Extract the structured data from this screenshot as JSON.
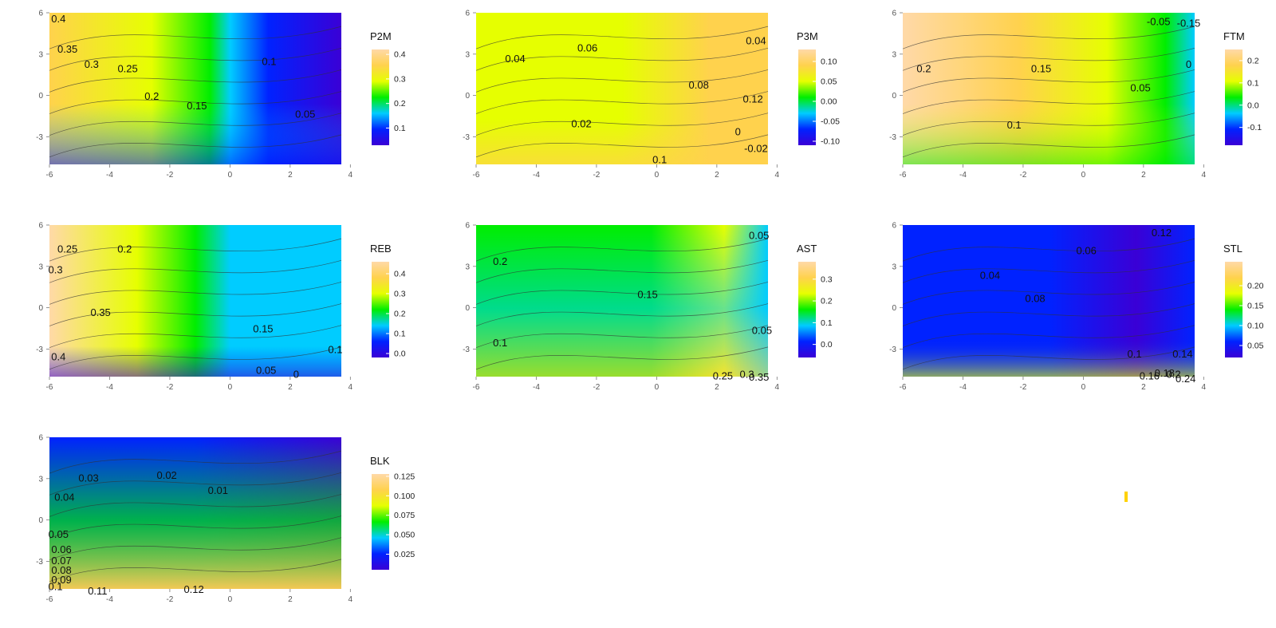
{
  "colors": {
    "palette": [
      "#3a00d6",
      "#0022ff",
      "#00ccff",
      "#00ee00",
      "#e6ff00",
      "#ffd24d",
      "#ffd9a8"
    ],
    "contour_line": "#333333",
    "marker": "#ffd200"
  },
  "chart_data": [
    {
      "type": "heatmap",
      "legend_title": "P2M",
      "legend_ticks": [
        "0.4",
        "0.3",
        "0.2",
        "0.1"
      ],
      "value_range": [
        0.03,
        0.42
      ],
      "xlim": [
        -6,
        3.7
      ],
      "ylim": [
        -5,
        6
      ],
      "x_ticks": [
        "-6",
        "-4",
        "-2",
        "0",
        "2",
        "4"
      ],
      "y_ticks": [
        "6",
        "3",
        "0",
        "-3"
      ],
      "contour_labels": [
        {
          "text": "0.4",
          "x": -5.7,
          "y": 5.5
        },
        {
          "text": "0.35",
          "x": -5.4,
          "y": 3.3
        },
        {
          "text": "0.3",
          "x": -4.6,
          "y": 2.2
        },
        {
          "text": "0.25",
          "x": -3.4,
          "y": 1.9
        },
        {
          "text": "0.2",
          "x": -2.6,
          "y": -0.1
        },
        {
          "text": "0.15",
          "x": -1.1,
          "y": -0.8
        },
        {
          "text": "0.1",
          "x": 1.3,
          "y": 2.4
        },
        {
          "text": "0.05",
          "x": 2.5,
          "y": -1.4
        }
      ]
    },
    {
      "type": "heatmap",
      "legend_title": "P3M",
      "legend_ticks": [
        "0.10",
        "0.05",
        "0.00",
        "-0.05",
        "-0.10"
      ],
      "value_range": [
        -0.11,
        0.13
      ],
      "xlim": [
        -6,
        3.7
      ],
      "ylim": [
        -5,
        6
      ],
      "x_ticks": [
        "-6",
        "-4",
        "-2",
        "0",
        "2",
        "4"
      ],
      "y_ticks": [
        "6",
        "3",
        "0",
        "-3"
      ],
      "contour_labels": [
        {
          "text": "0.04",
          "x": -4.7,
          "y": 2.6
        },
        {
          "text": "0.06",
          "x": -2.3,
          "y": 3.4
        },
        {
          "text": "0.08",
          "x": 1.4,
          "y": 0.7
        },
        {
          "text": "0.12",
          "x": 3.2,
          "y": -0.3
        },
        {
          "text": "0.02",
          "x": -2.5,
          "y": -2.1
        },
        {
          "text": "0.1",
          "x": 0.1,
          "y": -4.7
        },
        {
          "text": "0",
          "x": 2.7,
          "y": -2.7
        },
        {
          "text": "-0.02",
          "x": 3.3,
          "y": -3.9
        },
        {
          "text": "0.04",
          "x": 3.3,
          "y": 3.9
        }
      ]
    },
    {
      "type": "heatmap",
      "legend_title": "FTM",
      "legend_ticks": [
        "0.2",
        "0.1",
        "0.0",
        "-0.1"
      ],
      "value_range": [
        -0.18,
        0.25
      ],
      "xlim": [
        -6,
        3.7
      ],
      "ylim": [
        -5,
        6
      ],
      "x_ticks": [
        "-6",
        "-4",
        "-2",
        "0",
        "2",
        "4"
      ],
      "y_ticks": [
        "6",
        "3",
        "0",
        "-3"
      ],
      "contour_labels": [
        {
          "text": "0.2",
          "x": -5.3,
          "y": 1.9
        },
        {
          "text": "0.15",
          "x": -1.4,
          "y": 1.9
        },
        {
          "text": "0.05",
          "x": 1.9,
          "y": 0.5
        },
        {
          "text": "0.1",
          "x": -2.3,
          "y": -2.2
        },
        {
          "text": "0",
          "x": 3.5,
          "y": 2.2
        },
        {
          "text": "-0.05",
          "x": 2.5,
          "y": 5.3
        },
        {
          "text": "-0.15",
          "x": 3.5,
          "y": 5.2
        }
      ]
    },
    {
      "type": "heatmap",
      "legend_title": "REB",
      "legend_ticks": [
        "0.4",
        "0.3",
        "0.2",
        "0.1",
        "0.0"
      ],
      "value_range": [
        -0.02,
        0.46
      ],
      "xlim": [
        -6,
        3.7
      ],
      "ylim": [
        -5,
        6
      ],
      "x_ticks": [
        "-6",
        "-4",
        "-2",
        "0",
        "2",
        "4"
      ],
      "y_ticks": [
        "6",
        "3",
        "0",
        "-3"
      ],
      "contour_labels": [
        {
          "text": "0.25",
          "x": -5.4,
          "y": 4.2
        },
        {
          "text": "0.2",
          "x": -3.5,
          "y": 4.2
        },
        {
          "text": "0.3",
          "x": -5.8,
          "y": 2.7
        },
        {
          "text": "0.35",
          "x": -4.3,
          "y": -0.4
        },
        {
          "text": "0.15",
          "x": 1.1,
          "y": -1.6
        },
        {
          "text": "0.4",
          "x": -5.7,
          "y": -3.6
        },
        {
          "text": "0.1",
          "x": 3.5,
          "y": -3.1
        },
        {
          "text": "0.05",
          "x": 1.2,
          "y": -4.6
        },
        {
          "text": "0",
          "x": 2.2,
          "y": -4.9
        }
      ]
    },
    {
      "type": "heatmap",
      "legend_title": "AST",
      "legend_ticks": [
        "0.3",
        "0.2",
        "0.1",
        "0.0"
      ],
      "value_range": [
        -0.06,
        0.38
      ],
      "xlim": [
        -6,
        3.7
      ],
      "ylim": [
        -5,
        6
      ],
      "x_ticks": [
        "-6",
        "-4",
        "-2",
        "0",
        "2",
        "4"
      ],
      "y_ticks": [
        "6",
        "3",
        "0",
        "-3"
      ],
      "contour_labels": [
        {
          "text": "0.2",
          "x": -5.2,
          "y": 3.3
        },
        {
          "text": "0.15",
          "x": -0.3,
          "y": 0.9
        },
        {
          "text": "0.05",
          "x": 3.5,
          "y": -1.7
        },
        {
          "text": "0.1",
          "x": -5.2,
          "y": -2.6
        },
        {
          "text": "0.25",
          "x": 2.2,
          "y": -5.0
        },
        {
          "text": "0.3",
          "x": 3.0,
          "y": -4.9
        },
        {
          "text": "0.35",
          "x": 3.4,
          "y": -5.1
        },
        {
          "text": "0.05",
          "x": 3.4,
          "y": 5.2
        }
      ]
    },
    {
      "type": "heatmap",
      "legend_title": "STL",
      "legend_ticks": [
        "0.20",
        "0.15",
        "0.10",
        "0.05"
      ],
      "value_range": [
        0.02,
        0.26
      ],
      "xlim": [
        -6,
        3.7
      ],
      "ylim": [
        -5,
        6
      ],
      "x_ticks": [
        "-6",
        "-4",
        "-2",
        "0",
        "2",
        "4"
      ],
      "y_ticks": [
        "6",
        "3",
        "0",
        "-3"
      ],
      "contour_labels": [
        {
          "text": "0.12",
          "x": 2.6,
          "y": 5.4
        },
        {
          "text": "0.06",
          "x": 0.1,
          "y": 4.1
        },
        {
          "text": "0.04",
          "x": -3.1,
          "y": 2.3
        },
        {
          "text": "0.08",
          "x": -1.6,
          "y": 0.6
        },
        {
          "text": "0.1",
          "x": 1.7,
          "y": -3.4
        },
        {
          "text": "0.14",
          "x": 3.3,
          "y": -3.4
        },
        {
          "text": "0.16",
          "x": 2.2,
          "y": -5.0
        },
        {
          "text": "0.18",
          "x": 2.7,
          "y": -4.8
        },
        {
          "text": "0.2",
          "x": 3.0,
          "y": -4.9
        },
        {
          "text": "0.24",
          "x": 3.4,
          "y": -5.2
        }
      ]
    },
    {
      "type": "heatmap",
      "legend_title": "BLK",
      "legend_ticks": [
        "0.125",
        "0.100",
        "0.075",
        "0.050",
        "0.025"
      ],
      "value_range": [
        0.005,
        0.128
      ],
      "xlim": [
        -6,
        3.7
      ],
      "ylim": [
        -5,
        6
      ],
      "x_ticks": [
        "-6",
        "-4",
        "-2",
        "0",
        "2",
        "4"
      ],
      "y_ticks": [
        "6",
        "3",
        "0",
        "-3"
      ],
      "contour_labels": [
        {
          "text": "0.03",
          "x": -4.7,
          "y": 3.0
        },
        {
          "text": "0.02",
          "x": -2.1,
          "y": 3.2
        },
        {
          "text": "0.01",
          "x": -0.4,
          "y": 2.1
        },
        {
          "text": "0.04",
          "x": -5.5,
          "y": 1.6
        },
        {
          "text": "0.05",
          "x": -5.7,
          "y": -1.1
        },
        {
          "text": "0.06",
          "x": -5.6,
          "y": -2.2
        },
        {
          "text": "0.07",
          "x": -5.6,
          "y": -3.0
        },
        {
          "text": "0.08",
          "x": -5.6,
          "y": -3.7
        },
        {
          "text": "0.09",
          "x": -5.6,
          "y": -4.4
        },
        {
          "text": "0.1",
          "x": -5.8,
          "y": -4.9
        },
        {
          "text": "0.11",
          "x": -4.4,
          "y": -5.2
        },
        {
          "text": "0.12",
          "x": -1.2,
          "y": -5.1
        }
      ]
    }
  ]
}
